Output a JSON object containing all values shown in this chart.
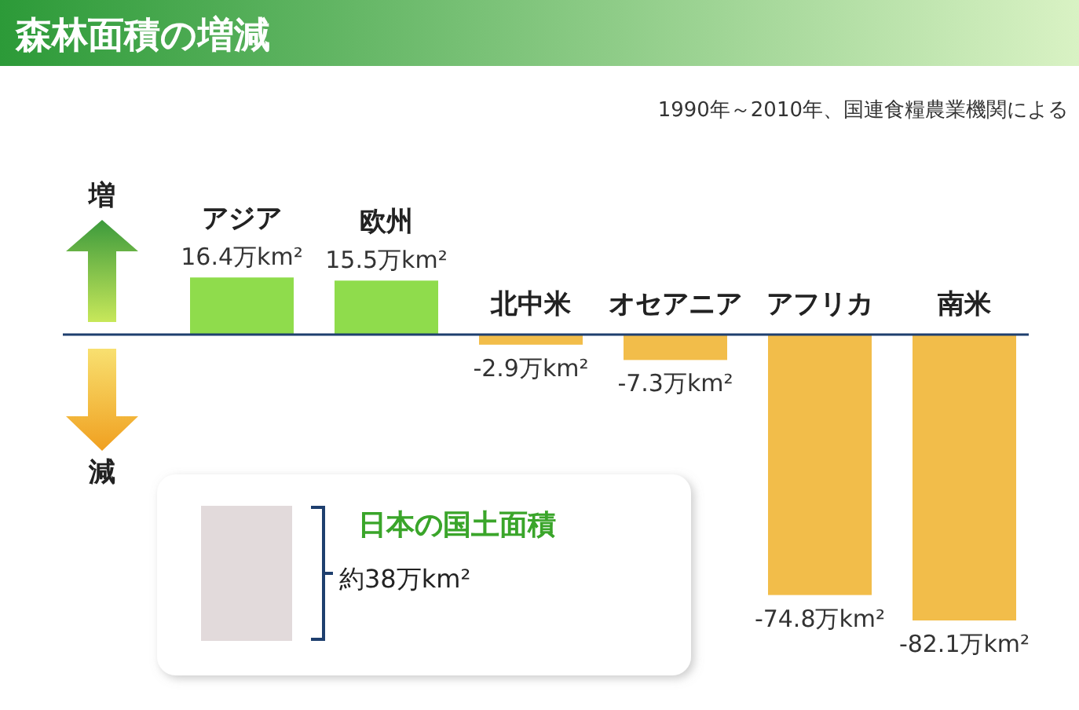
{
  "chart_data": {
    "type": "bar",
    "title": "森林面積の増減",
    "subtitle": "1990年～2010年、国連食糧農業機関による",
    "categories": [
      "アジア",
      "欧州",
      "北中米",
      "オセアニア",
      "アフリカ",
      "南米"
    ],
    "values": [
      16.4,
      15.5,
      -2.9,
      -7.3,
      -74.8,
      -82.1
    ],
    "colors": [
      "#8fdc4c",
      "#8fdc4c",
      "#f2bd4a",
      "#f2bd4a",
      "#f2bd4a",
      "#f2bd4a"
    ],
    "value_labels": [
      "16.4万km²",
      "15.5万km²",
      "-2.9万km²",
      "-7.3万km²",
      "-74.8万km²",
      "-82.1万km²"
    ],
    "annotations": [
      "増",
      "減",
      "日本の国土面積",
      "約38万km²"
    ]
  }
}
